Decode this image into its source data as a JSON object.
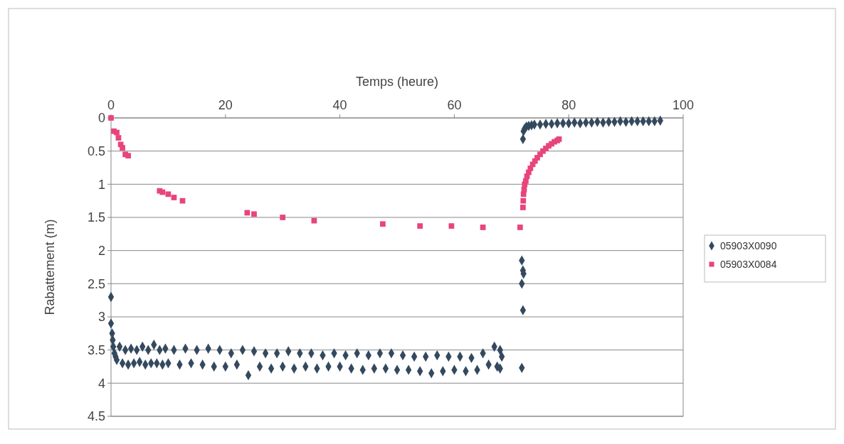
{
  "chart_data": {
    "type": "scatter",
    "xlabel": "Temps (heure)",
    "ylabel": "Rabattement (m)",
    "xlim": [
      0,
      100
    ],
    "xticks": [
      0,
      20,
      40,
      60,
      80,
      100
    ],
    "ylim": [
      4.5,
      0
    ],
    "yticks": [
      0,
      0.5,
      1,
      1.5,
      2,
      2.5,
      3,
      3.5,
      4,
      4.5
    ],
    "grid": "y",
    "legend": "right",
    "series": [
      {
        "name": "05903X0090",
        "color": "#34495e",
        "marker": "diamond",
        "x": [
          0,
          0,
          0.2,
          0.3,
          0.4,
          0.6,
          0.8,
          1,
          1.5,
          2,
          2.5,
          3,
          3.5,
          4,
          4.5,
          5,
          5.5,
          6,
          6.5,
          7,
          7.5,
          8,
          8.5,
          9,
          9.5,
          10,
          11,
          12,
          13,
          14,
          15,
          16,
          17,
          18,
          19,
          20,
          21,
          22,
          23,
          24,
          25,
          26,
          27,
          28,
          29,
          30,
          31,
          32,
          33,
          34,
          35,
          36,
          37,
          38,
          39,
          40,
          41,
          42,
          43,
          44,
          45,
          46,
          47,
          48,
          49,
          50,
          51,
          52,
          53,
          54,
          55,
          56,
          57,
          58,
          59,
          60,
          61,
          62,
          63,
          64,
          65,
          66,
          67,
          67.5,
          68,
          68.3,
          68,
          71.8,
          72,
          72.1,
          71.8,
          72,
          71.8,
          72,
          72.1,
          72.3,
          72.6,
          73,
          73.5,
          74,
          75,
          76,
          77,
          78,
          79,
          80,
          81,
          82,
          83,
          84,
          85,
          86,
          87,
          88,
          89,
          90,
          91,
          92,
          93,
          94,
          95,
          96
        ],
        "values": [
          2.7,
          3.1,
          3.25,
          3.35,
          3.45,
          3.55,
          3.6,
          3.65,
          3.45,
          3.7,
          3.5,
          3.72,
          3.48,
          3.7,
          3.5,
          3.68,
          3.45,
          3.72,
          3.5,
          3.7,
          3.42,
          3.7,
          3.5,
          3.72,
          3.48,
          3.7,
          3.5,
          3.72,
          3.48,
          3.7,
          3.5,
          3.72,
          3.48,
          3.75,
          3.5,
          3.75,
          3.55,
          3.72,
          3.5,
          3.88,
          3.52,
          3.75,
          3.55,
          3.78,
          3.55,
          3.75,
          3.52,
          3.78,
          3.55,
          3.75,
          3.55,
          3.78,
          3.58,
          3.75,
          3.55,
          3.75,
          3.58,
          3.78,
          3.55,
          3.8,
          3.58,
          3.78,
          3.55,
          3.78,
          3.55,
          3.8,
          3.58,
          3.8,
          3.6,
          3.82,
          3.6,
          3.85,
          3.58,
          3.82,
          3.6,
          3.8,
          3.6,
          3.82,
          3.62,
          3.8,
          3.55,
          3.72,
          3.45,
          3.75,
          3.5,
          3.6,
          3.78,
          2.15,
          2.3,
          2.35,
          2.5,
          2.9,
          3.77,
          0.32,
          0.2,
          0.16,
          0.13,
          0.12,
          0.11,
          0.1,
          0.1,
          0.09,
          0.09,
          0.08,
          0.08,
          0.08,
          0.07,
          0.08,
          0.07,
          0.07,
          0.06,
          0.07,
          0.06,
          0.06,
          0.05,
          0.06,
          0.05,
          0.05,
          0.05,
          0.05,
          0.05,
          0.04
        ]
      },
      {
        "name": "05903X0084",
        "color": "#e8457a",
        "marker": "square",
        "x": [
          0,
          0.5,
          1,
          1.3,
          1.7,
          2,
          2.5,
          3,
          8.5,
          9,
          10,
          11,
          12.5,
          23.8,
          25,
          30,
          35.5,
          47.5,
          54,
          59.5,
          65,
          71.5,
          72,
          72.05,
          72.1,
          72.2,
          72.3,
          72.5,
          72.7,
          73,
          73.3,
          73.7,
          74.1,
          74.5,
          75,
          75.5,
          76,
          76.5,
          77,
          77.5,
          78,
          78.3
        ],
        "values": [
          0,
          0.2,
          0.22,
          0.3,
          0.4,
          0.45,
          0.55,
          0.57,
          1.1,
          1.12,
          1.15,
          1.2,
          1.25,
          1.43,
          1.45,
          1.5,
          1.55,
          1.6,
          1.63,
          1.63,
          1.65,
          1.65,
          1.35,
          1.25,
          1.15,
          1.08,
          1.0,
          0.95,
          0.88,
          0.82,
          0.76,
          0.7,
          0.65,
          0.6,
          0.55,
          0.5,
          0.46,
          0.42,
          0.39,
          0.36,
          0.34,
          0.32
        ]
      }
    ]
  }
}
